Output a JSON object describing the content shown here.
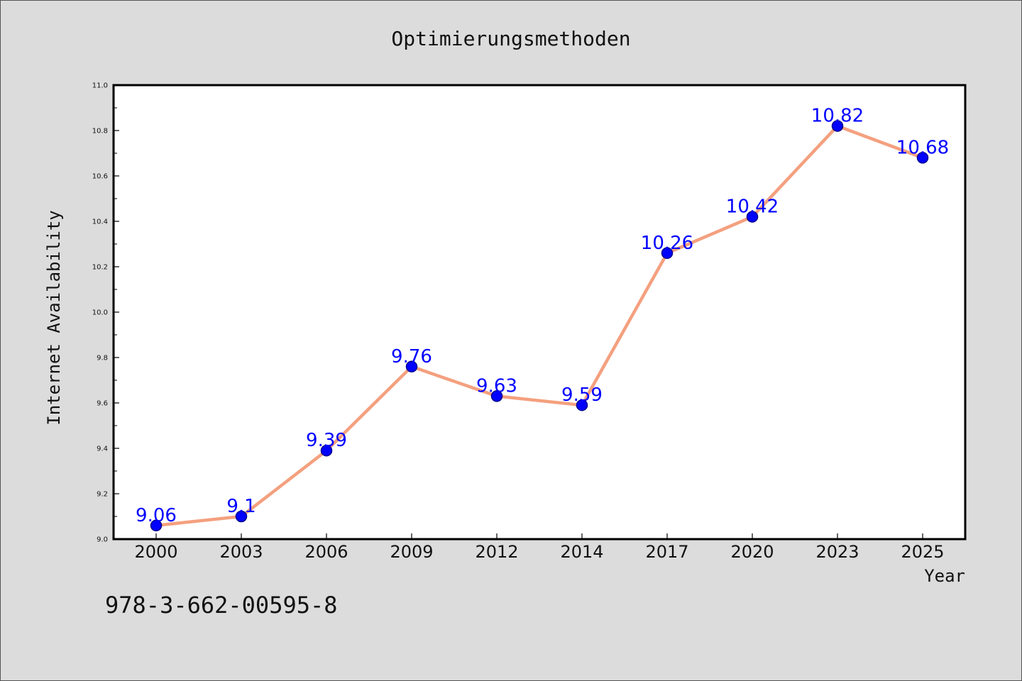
{
  "footer": {
    "isbn": "978-3-662-00595-8"
  },
  "colors": {
    "line": "#f4a07f",
    "marker_fill": "#0000ff",
    "marker_edge": "#00008b",
    "label": "#0000ff",
    "background": "#dcdcdc",
    "plot_area": "#ffffff"
  },
  "chart_data": {
    "type": "line",
    "title": "Optimierungsmethoden",
    "xlabel": "Year",
    "ylabel": "Internet Availability",
    "categories": [
      "2000",
      "2003",
      "2006",
      "2009",
      "2012",
      "2014",
      "2017",
      "2020",
      "2023",
      "2025"
    ],
    "series": [
      {
        "values": [
          9.06,
          9.1,
          9.39,
          9.76,
          9.63,
          9.59,
          10.26,
          10.42,
          10.82,
          10.68
        ],
        "labels": [
          "9.06",
          "9.1",
          "9.39",
          "9.76",
          "9.63",
          "9.59",
          "10.26",
          "10.42",
          "10.82",
          "10.68"
        ]
      }
    ],
    "ylim": [
      9.0,
      11.0
    ],
    "yticks": [
      "9.0",
      "9.2",
      "9.4",
      "9.6",
      "9.8",
      "10.0",
      "10.2",
      "10.4",
      "10.6",
      "10.8",
      "11.0"
    ],
    "grid": false,
    "legend": "none",
    "markers": "circle"
  }
}
